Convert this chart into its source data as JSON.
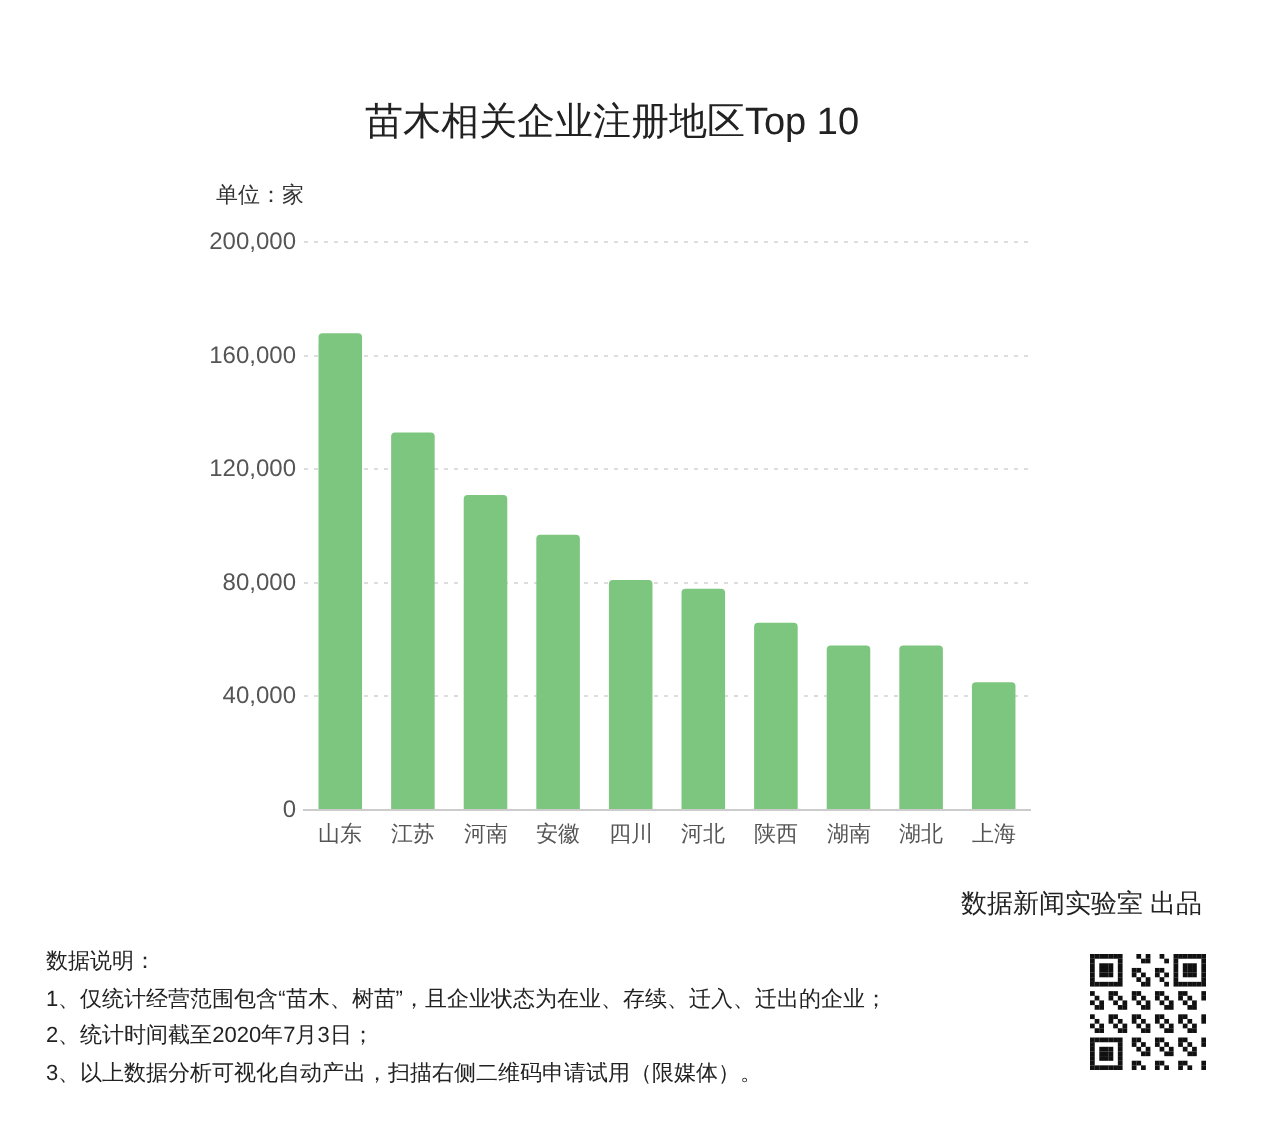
{
  "chart_data": {
    "type": "bar",
    "title": "苗木相关企业注册地区Top 10",
    "ylabel": "单位：家",
    "categories": [
      "山东",
      "江苏",
      "河南",
      "安徽",
      "四川",
      "河北",
      "陕西",
      "湖南",
      "湖北",
      "上海"
    ],
    "values": [
      168000,
      133000,
      111000,
      97000,
      81000,
      78000,
      66000,
      58000,
      58000,
      45000
    ],
    "color": "#7dc67f",
    "ylim": [
      0,
      200000
    ],
    "yticks": [
      {
        "value": 0,
        "label": "0"
      },
      {
        "value": 40000,
        "label": "40,000"
      },
      {
        "value": 80000,
        "label": "80,000"
      },
      {
        "value": 120000,
        "label": "120,000"
      },
      {
        "value": 160000,
        "label": "160,000"
      },
      {
        "value": 200000,
        "label": "200,000"
      }
    ],
    "grid": "y",
    "annotations": [
      "数据新闻实验室 出品",
      "数据说明：",
      "1、仅统计经营范围包含“苗木、树苗”，且企业状态为在业、存续、迁入、迁出的企业；",
      "2、统计时间截至2020年7月3日；",
      "3、以上数据分析可视化自动产出，扫描右侧二维码申请试用（限媒体）。"
    ]
  }
}
